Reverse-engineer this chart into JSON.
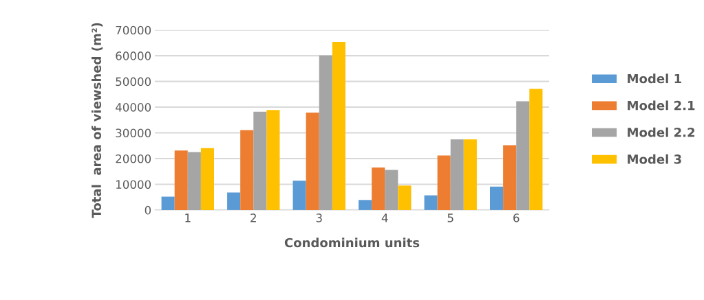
{
  "chart_data": {
    "type": "bar",
    "xlabel": "Condominium units",
    "ylabel": "Total  area of viewshed (m²)",
    "categories": [
      "1",
      "2",
      "3",
      "4",
      "5",
      "6"
    ],
    "series": [
      {
        "name": "Model 1",
        "color": "#5b9bd5",
        "values": [
          5200,
          6800,
          11400,
          3900,
          5700,
          9100
        ]
      },
      {
        "name": "Model 2.1",
        "color": "#ed7d31",
        "values": [
          23100,
          31100,
          37900,
          16500,
          21200,
          25200
        ]
      },
      {
        "name": "Model 2.2",
        "color": "#a5a5a5",
        "values": [
          22500,
          38200,
          60100,
          15600,
          27500,
          42300
        ]
      },
      {
        "name": "Model 3",
        "color": "#ffc000",
        "values": [
          24100,
          38900,
          65400,
          9500,
          27500,
          47100
        ]
      }
    ],
    "ylim": [
      0,
      70000
    ],
    "yticks": [
      0,
      10000,
      20000,
      30000,
      40000,
      50000,
      60000,
      70000
    ],
    "grid": "y",
    "legend": "right"
  }
}
